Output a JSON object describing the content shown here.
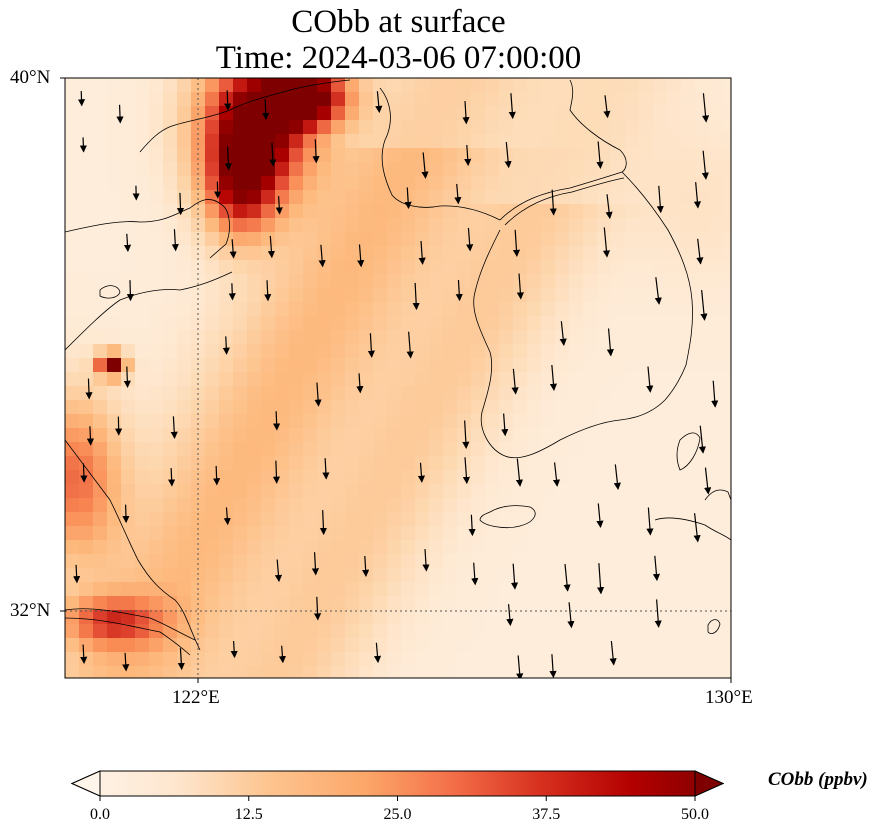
{
  "title_line1": "CObb at surface",
  "title_line2": "Time: 2024-03-06 07:00:00",
  "lat_ticks": [
    "40°N",
    "32°N"
  ],
  "lon_ticks": [
    "122°E",
    "130°E"
  ],
  "colorbar": {
    "label": "CObb (ppbv)",
    "ticks": [
      "0.0",
      "12.5",
      "25.0",
      "37.5",
      "50.0"
    ],
    "min": 0,
    "max": 50,
    "colors": [
      "#fff5eb",
      "#fdd9b2",
      "#fdb97d",
      "#f98b55",
      "#e34a33",
      "#b30000",
      "#7f0000"
    ]
  },
  "chart_data": {
    "type": "heatmap",
    "title": "CObb at surface\nTime: 2024-03-06 07:00:00",
    "variable": "CObb",
    "units": "ppbv",
    "extent": {
      "lon": [
        120,
        130
      ],
      "lat": [
        31,
        40
      ]
    },
    "gridlines": {
      "lon": [
        122
      ],
      "lat": [
        32
      ]
    },
    "value_range": [
      0,
      50
    ],
    "features": [
      {
        "name": "north-plume",
        "lon": 123.0,
        "lat": 39.2,
        "peak": 55
      },
      {
        "name": "small-hotspot",
        "lon": 120.7,
        "lat": 35.7,
        "peak": 52
      },
      {
        "name": "southwest-coast",
        "lon": 120.3,
        "lat": 34.0,
        "peak": 34
      },
      {
        "name": "yangtze-mouth",
        "lon": 120.7,
        "lat": 32.0,
        "peak": 34
      }
    ],
    "wind_arrows": "southward to south-southwestward across domain, stronger over the southeast"
  }
}
